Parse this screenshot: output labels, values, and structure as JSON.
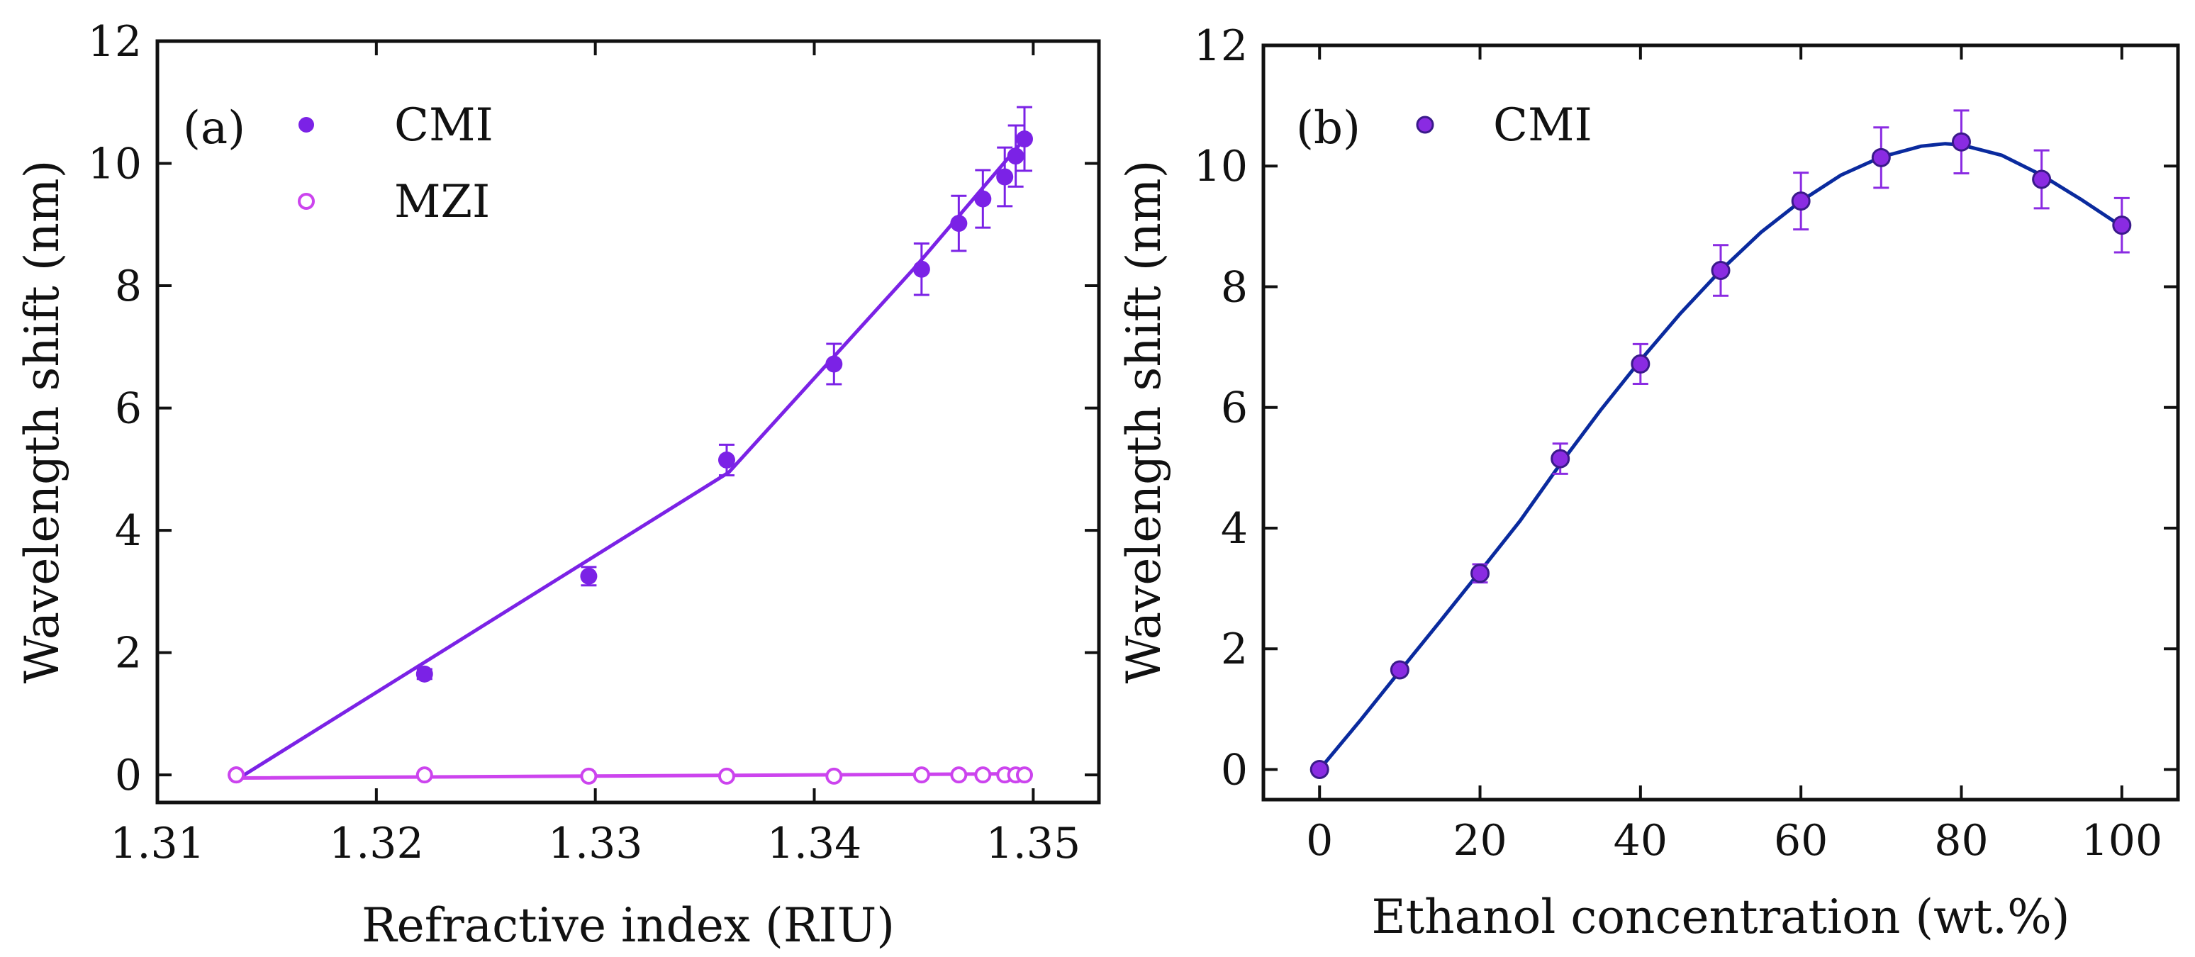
{
  "chart_data": [
    {
      "panel_label": "(a)",
      "type": "scatter",
      "xlabel": "Refractive index (RIU)",
      "ylabel": "Wavelength shift (nm)",
      "xlim": [
        1.31,
        1.353
      ],
      "ylim": [
        -0.45,
        12
      ],
      "xticks": [
        1.31,
        1.32,
        1.33,
        1.34,
        1.35
      ],
      "xtick_labels": [
        "1.31",
        "1.32",
        "1.33",
        "1.34",
        "1.35"
      ],
      "yticks": [
        0,
        2,
        4,
        6,
        8,
        10,
        12
      ],
      "ytick_labels": [
        "0",
        "2",
        "4",
        "6",
        "8",
        "10",
        "12"
      ],
      "legend_placement": "top-left",
      "series": [
        {
          "name": "CMI",
          "marker": "filled-circle",
          "color": "#7b22e6",
          "x": [
            1.3136,
            1.3222,
            1.3297,
            1.336,
            1.3409,
            1.3449,
            1.3466,
            1.3477,
            1.3487,
            1.3492,
            1.3496
          ],
          "y": [
            0.0,
            1.65,
            3.25,
            5.15,
            6.72,
            8.27,
            9.02,
            9.42,
            9.78,
            10.12,
            10.4
          ],
          "error": [
            0.0,
            0.08,
            0.15,
            0.25,
            0.33,
            0.42,
            0.45,
            0.47,
            0.48,
            0.5,
            0.52
          ],
          "fit_line": {
            "x": [
              1.3136,
              1.3361,
              1.3446,
              1.3496
            ],
            "y": [
              -0.08,
              4.95,
              8.3,
              10.4
            ]
          }
        },
        {
          "name": "MZI",
          "marker": "open-circle",
          "color": "#cc44ee",
          "x": [
            1.3136,
            1.3222,
            1.3297,
            1.336,
            1.3409,
            1.3449,
            1.3466,
            1.3477,
            1.3487,
            1.3492,
            1.3496
          ],
          "y": [
            0.0,
            0.0,
            -0.02,
            -0.02,
            -0.02,
            0.0,
            0.0,
            0.0,
            0.0,
            0.0,
            0.0
          ],
          "fit_line": {
            "x": [
              1.3136,
              1.3496
            ],
            "y": [
              -0.05,
              0.02
            ]
          }
        }
      ]
    },
    {
      "panel_label": "(b)",
      "type": "scatter",
      "xlabel": "Ethanol concentration (wt.%)",
      "ylabel": "Wavelength shift (nm)",
      "xlim": [
        -7,
        107
      ],
      "ylim": [
        -0.5,
        12
      ],
      "xticks": [
        0,
        20,
        40,
        60,
        80,
        100
      ],
      "xtick_labels": [
        "0",
        "20",
        "40",
        "60",
        "80",
        "100"
      ],
      "yticks": [
        0,
        2,
        4,
        6,
        8,
        10,
        12
      ],
      "ytick_labels": [
        "0",
        "2",
        "4",
        "6",
        "8",
        "10",
        "12"
      ],
      "legend_placement": "top-left",
      "series": [
        {
          "name": "CMI",
          "marker": "filled-circle",
          "color": "#8a2be2",
          "fit_color": "#0a2a9e",
          "x": [
            0,
            10,
            20,
            30,
            40,
            50,
            60,
            70,
            80,
            90,
            100
          ],
          "y": [
            0.0,
            1.65,
            3.25,
            5.15,
            6.72,
            8.27,
            9.42,
            10.14,
            10.4,
            9.78,
            9.02
          ],
          "error": [
            0.0,
            0.08,
            0.15,
            0.25,
            0.33,
            0.42,
            0.47,
            0.5,
            0.52,
            0.48,
            0.45
          ],
          "fit_curve": {
            "x": [
              0,
              5,
              10,
              15,
              20,
              25,
              30,
              35,
              40,
              45,
              50,
              55,
              60,
              65,
              70,
              75,
              78,
              80,
              85,
              90,
              95,
              100
            ],
            "y": [
              0.0,
              0.8,
              1.63,
              2.45,
              3.28,
              4.12,
              5.06,
              5.95,
              6.78,
              7.56,
              8.27,
              8.9,
              9.42,
              9.85,
              10.15,
              10.33,
              10.37,
              10.35,
              10.18,
              9.85,
              9.44,
              9.0
            ]
          }
        }
      ]
    }
  ]
}
